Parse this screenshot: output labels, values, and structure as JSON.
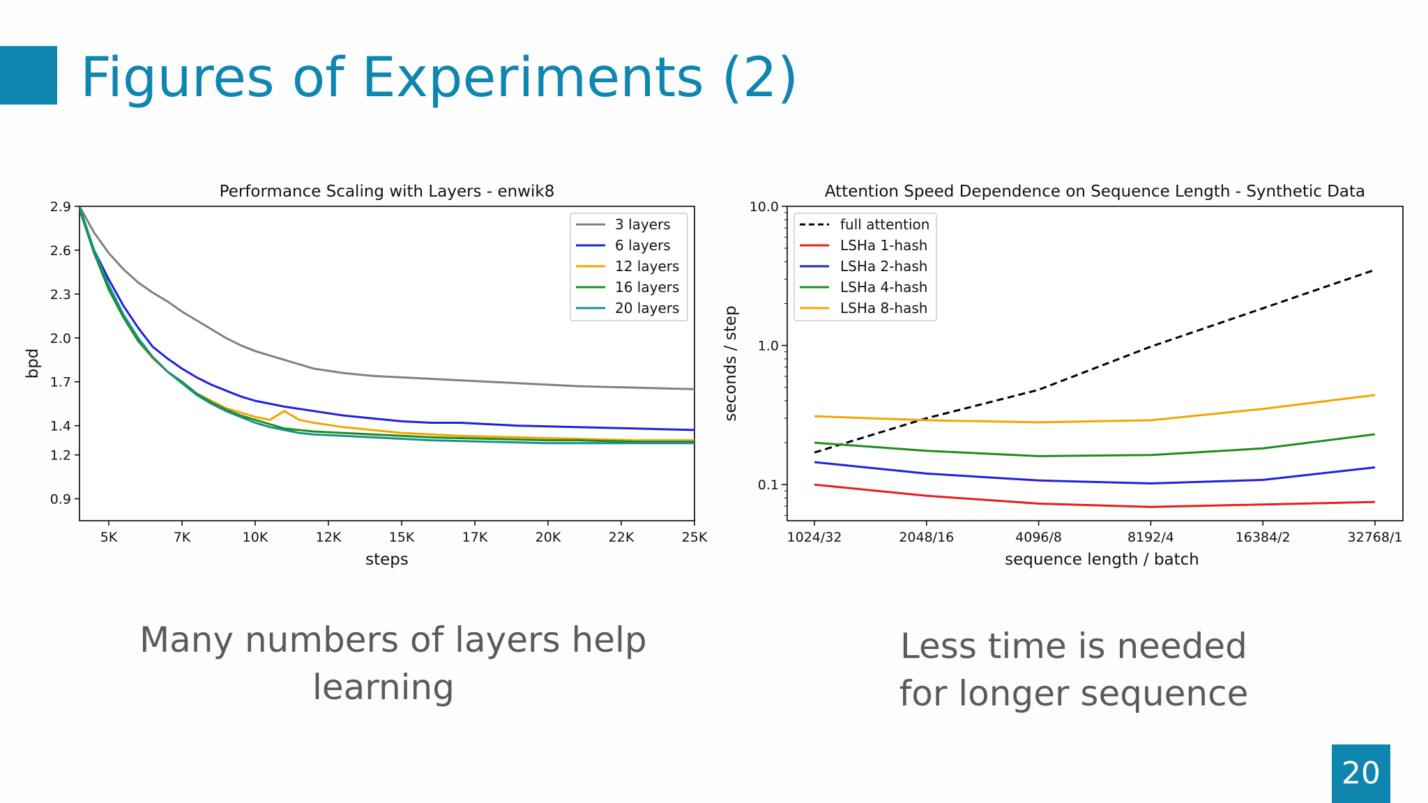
{
  "slide": {
    "title": "Figures of Experiments (2)",
    "page_number": "20",
    "accent_color": "#0f86b0",
    "caption_left": [
      "Many numbers of layers help",
      "learning"
    ],
    "caption_right": [
      "Less time is needed",
      "for longer sequence"
    ]
  },
  "chart_data": [
    {
      "type": "line",
      "title": "Performance Scaling with Layers - enwik8",
      "xlabel": "steps",
      "ylabel": "bpd",
      "xlim": [
        4000,
        25000
      ],
      "ylim": [
        0.75,
        2.9
      ],
      "x_ticks": [
        5000,
        7500,
        10000,
        12500,
        15000,
        17500,
        20000,
        22500,
        25000
      ],
      "x_tick_labels": [
        "5K",
        "7K",
        "10K",
        "12K",
        "15K",
        "17K",
        "20K",
        "22K",
        "25K"
      ],
      "y_ticks": [
        0.9,
        1.2,
        1.4,
        1.7,
        2.0,
        2.3,
        2.6,
        2.9
      ],
      "y_tick_labels": [
        "0.9",
        "1.2",
        "1.4",
        "1.7",
        "2.0",
        "2.3",
        "2.6",
        "2.9"
      ],
      "legend_position": "top-right",
      "series": [
        {
          "name": "3 layers",
          "color": "#808080",
          "x": [
            4000,
            4500,
            5000,
            5500,
            6000,
            6500,
            7000,
            7500,
            8000,
            8500,
            9000,
            9500,
            10000,
            11000,
            12000,
            13000,
            14000,
            15000,
            16000,
            17000,
            18000,
            19000,
            20000,
            21000,
            22000,
            23000,
            24000,
            25000
          ],
          "y": [
            2.9,
            2.72,
            2.58,
            2.47,
            2.38,
            2.31,
            2.25,
            2.18,
            2.12,
            2.06,
            2.0,
            1.95,
            1.91,
            1.85,
            1.79,
            1.76,
            1.74,
            1.73,
            1.72,
            1.71,
            1.7,
            1.69,
            1.68,
            1.67,
            1.665,
            1.66,
            1.655,
            1.65
          ]
        },
        {
          "name": "6 layers",
          "color": "#1f1fe0",
          "x": [
            4000,
            4500,
            5000,
            5500,
            6000,
            6500,
            7000,
            7500,
            8000,
            8500,
            9000,
            9500,
            10000,
            11000,
            12000,
            13000,
            14000,
            15000,
            16000,
            17000,
            18000,
            19000,
            20000,
            21000,
            22000,
            23000,
            24000,
            25000
          ],
          "y": [
            2.88,
            2.6,
            2.4,
            2.22,
            2.07,
            1.94,
            1.86,
            1.79,
            1.73,
            1.68,
            1.64,
            1.6,
            1.57,
            1.53,
            1.5,
            1.47,
            1.45,
            1.43,
            1.42,
            1.42,
            1.41,
            1.4,
            1.395,
            1.39,
            1.385,
            1.38,
            1.375,
            1.37
          ]
        },
        {
          "name": "12 layers",
          "color": "#f5a300",
          "x": [
            4000,
            4500,
            5000,
            5500,
            6000,
            6500,
            7000,
            7500,
            8000,
            8500,
            9000,
            9500,
            10000,
            10500,
            11000,
            11500,
            12000,
            13000,
            14000,
            15000,
            16000,
            17000,
            18000,
            19000,
            20000,
            21000,
            22000,
            23000,
            24000,
            25000
          ],
          "y": [
            2.9,
            2.58,
            2.35,
            2.15,
            1.98,
            1.86,
            1.77,
            1.69,
            1.62,
            1.57,
            1.52,
            1.49,
            1.46,
            1.44,
            1.5,
            1.44,
            1.42,
            1.39,
            1.37,
            1.35,
            1.34,
            1.33,
            1.325,
            1.32,
            1.315,
            1.31,
            1.305,
            1.3,
            1.3,
            1.3
          ]
        },
        {
          "name": "16 layers",
          "color": "#1e8c1e",
          "x": [
            4000,
            4500,
            5000,
            5500,
            6000,
            6500,
            7000,
            7500,
            8000,
            8500,
            9000,
            9500,
            10000,
            10500,
            11000,
            11500,
            12000,
            13000,
            14000,
            15000,
            16000,
            17000,
            18000,
            19000,
            20000,
            21000,
            22000,
            23000,
            24000,
            25000
          ],
          "y": [
            2.88,
            2.58,
            2.33,
            2.14,
            1.98,
            1.87,
            1.77,
            1.7,
            1.62,
            1.56,
            1.51,
            1.47,
            1.44,
            1.41,
            1.38,
            1.37,
            1.36,
            1.35,
            1.34,
            1.33,
            1.32,
            1.315,
            1.31,
            1.305,
            1.3,
            1.3,
            1.295,
            1.29,
            1.29,
            1.29
          ]
        },
        {
          "name": "20 layers",
          "color": "#17918a",
          "x": [
            4000,
            4500,
            5000,
            5500,
            6000,
            6500,
            7000,
            7500,
            8000,
            8500,
            9000,
            9500,
            10000,
            10500,
            11000,
            11500,
            12000,
            13000,
            14000,
            15000,
            16000,
            17000,
            18000,
            19000,
            20000,
            21000,
            22000,
            23000,
            24000,
            25000
          ],
          "y": [
            2.9,
            2.6,
            2.36,
            2.16,
            2.0,
            1.87,
            1.77,
            1.69,
            1.61,
            1.55,
            1.5,
            1.46,
            1.42,
            1.39,
            1.37,
            1.35,
            1.34,
            1.33,
            1.32,
            1.31,
            1.3,
            1.295,
            1.29,
            1.285,
            1.28,
            1.28,
            1.28,
            1.28,
            1.28,
            1.28
          ]
        }
      ]
    },
    {
      "type": "line",
      "title": "Attention Speed Dependence on Sequence Length - Synthetic Data",
      "xlabel": "sequence length / batch",
      "ylabel": "seconds / step",
      "y_scale": "log",
      "ylim": [
        0.055,
        10.0
      ],
      "categories": [
        "1024/32",
        "2048/16",
        "4096/8",
        "8192/4",
        "16384/2",
        "32768/1"
      ],
      "y_ticks": [
        0.1,
        1.0,
        10.0
      ],
      "y_tick_labels": [
        "0.1",
        "1.0",
        "10.0"
      ],
      "legend_position": "top-left",
      "series": [
        {
          "name": "full attention",
          "color": "#000000",
          "dashed": true,
          "values": [
            0.17,
            0.3,
            0.48,
            0.98,
            1.85,
            3.5
          ]
        },
        {
          "name": "LSHa 1-hash",
          "color": "#e81c1c",
          "dashed": false,
          "values": [
            0.1,
            0.083,
            0.073,
            0.069,
            0.072,
            0.075
          ]
        },
        {
          "name": "LSHa 2-hash",
          "color": "#1f1fe0",
          "dashed": false,
          "values": [
            0.145,
            0.12,
            0.107,
            0.102,
            0.108,
            0.133
          ]
        },
        {
          "name": "LSHa 4-hash",
          "color": "#1e8c1e",
          "dashed": false,
          "values": [
            0.2,
            0.175,
            0.16,
            0.163,
            0.182,
            0.23
          ]
        },
        {
          "name": "LSHa 8-hash",
          "color": "#f5a300",
          "dashed": false,
          "values": [
            0.31,
            0.29,
            0.28,
            0.29,
            0.35,
            0.44
          ]
        }
      ]
    }
  ]
}
